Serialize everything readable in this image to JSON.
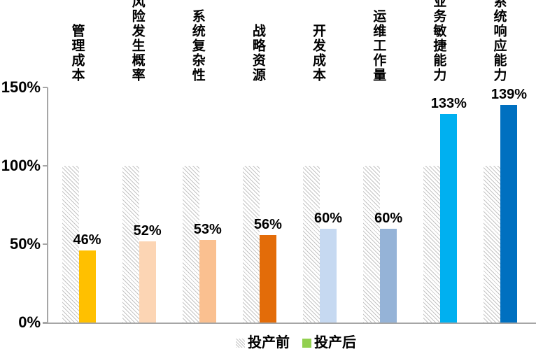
{
  "chart_data": {
    "type": "bar",
    "title": "",
    "categories": [
      "管理成本",
      "风险发生概率",
      "系统复杂性",
      "战略资源",
      "开发成本",
      "运维工作量",
      "业务敏捷能力",
      "系统响应能力"
    ],
    "series": [
      {
        "name": "投产前",
        "values": [
          100,
          100,
          100,
          100,
          100,
          100,
          100,
          100
        ],
        "style": "hatched-gray",
        "legend_swatch": "hatched-gray"
      },
      {
        "name": "投产后",
        "values": [
          46,
          52,
          53,
          56,
          60,
          60,
          133,
          139
        ],
        "bar_colors": [
          "#FFC000",
          "#FCD5B4",
          "#FAC090",
          "#E36C09",
          "#C6D9F1",
          "#95B3D7",
          "#00B0F0",
          "#0070C0"
        ],
        "legend_swatch_color": "#92D050"
      }
    ],
    "data_labels": [
      "46%",
      "52%",
      "53%",
      "56%",
      "60%",
      "60%",
      "133%",
      "139%"
    ],
    "y_ticks": [
      "0%",
      "50%",
      "100%",
      "150%"
    ],
    "ylim": [
      0,
      150
    ],
    "xlabel": "",
    "ylabel": "",
    "grid": false,
    "legend_position": "bottom"
  },
  "colors": {
    "axis": "#A6A6A6",
    "hatch_line": "#C4C4C4",
    "text": "#000000",
    "legend_after_swatch": "#92D050"
  }
}
